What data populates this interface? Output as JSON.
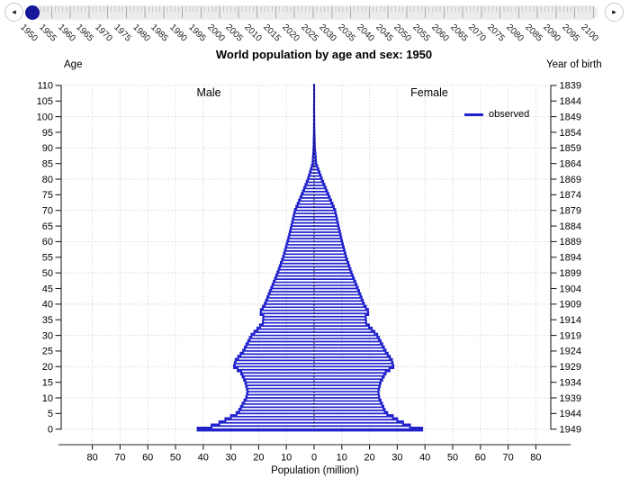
{
  "slider": {
    "left_arrow": "◂",
    "right_arrow": "▸",
    "min_year": 1950,
    "max_year": 2100,
    "current_year": 1950,
    "handle_color": "#16169b",
    "year_labels": [
      "1950",
      "1955",
      "1960",
      "1965",
      "1970",
      "1975",
      "1980",
      "1985",
      "1990",
      "1995",
      "2000",
      "2005",
      "2010",
      "2015",
      "2020",
      "2025",
      "2030",
      "2035",
      "2040",
      "2045",
      "2050",
      "2055",
      "2060",
      "2065",
      "2070",
      "2075",
      "2080",
      "2085",
      "2090",
      "2095",
      "2100"
    ]
  },
  "chart": {
    "title": "World population by age and sex: 1950",
    "age_axis_label": "Age",
    "birth_axis_label": "Year of birth",
    "x_axis_label": "Population (million)",
    "male_label": "Male",
    "female_label": "Female",
    "legend_label": "observed",
    "series_color": "#2222cd",
    "gridline_color": "#c6c6c6"
  },
  "chart_data": {
    "type": "population-pyramid",
    "year": 1950,
    "unit": "million persons per single year of age",
    "age_range": [
      0,
      110
    ],
    "age_ticks": [
      0,
      5,
      10,
      15,
      20,
      25,
      30,
      35,
      40,
      45,
      50,
      55,
      60,
      65,
      70,
      75,
      80,
      85,
      90,
      95,
      100,
      105,
      110
    ],
    "birth_year_ticks": [
      1839,
      1844,
      1849,
      1854,
      1859,
      1864,
      1869,
      1874,
      1879,
      1884,
      1889,
      1894,
      1899,
      1904,
      1909,
      1914,
      1919,
      1924,
      1929,
      1934,
      1939,
      1944,
      1949
    ],
    "x_tick_values": [
      -80,
      -70,
      -60,
      -50,
      -40,
      -30,
      -20,
      -10,
      0,
      10,
      20,
      30,
      40,
      50,
      60,
      70,
      80
    ],
    "x_tick_labels": [
      "80",
      "70",
      "60",
      "50",
      "40",
      "30",
      "20",
      "10",
      "0",
      "10",
      "20",
      "30",
      "40",
      "50",
      "60",
      "70",
      "80"
    ],
    "legend": [
      "observed"
    ],
    "grid": "dotted at every 10 years of age and every 10 million",
    "pivots": {
      "note": "values (millions) read from the chart; bars for ages 0-110 are linearly interpolated between these pivot ages",
      "ages": [
        0,
        1,
        2,
        3,
        4,
        5,
        6,
        8,
        10,
        12,
        15,
        18,
        20,
        22,
        25,
        28,
        30,
        32,
        34,
        36,
        37,
        38,
        40,
        45,
        50,
        55,
        60,
        65,
        70,
        75,
        80,
        85,
        90,
        95,
        100,
        105,
        110
      ],
      "male": [
        42,
        37,
        34.2,
        32,
        30,
        28,
        27,
        25.8,
        24.5,
        24,
        24.8,
        26.3,
        28.9,
        28.3,
        25.6,
        23.8,
        22.6,
        20.5,
        18.5,
        18.3,
        19.3,
        19.2,
        17.8,
        15.5,
        13.2,
        11.2,
        9.6,
        8.2,
        6.9,
        4.5,
        2.2,
        0.55,
        0.2,
        0.07,
        0.03,
        0.015,
        0.01
      ],
      "female": [
        39,
        34.6,
        32.1,
        30,
        28.4,
        26.4,
        25.5,
        24.5,
        23.5,
        23.2,
        24,
        25.8,
        28.6,
        28.1,
        25.8,
        24,
        22.8,
        20.8,
        18.8,
        18.6,
        19.5,
        19.4,
        18,
        15.8,
        13.5,
        11.6,
        10.1,
        8.8,
        7.6,
        5.2,
        2.8,
        0.75,
        0.3,
        0.12,
        0.05,
        0.025,
        0.015
      ]
    }
  }
}
